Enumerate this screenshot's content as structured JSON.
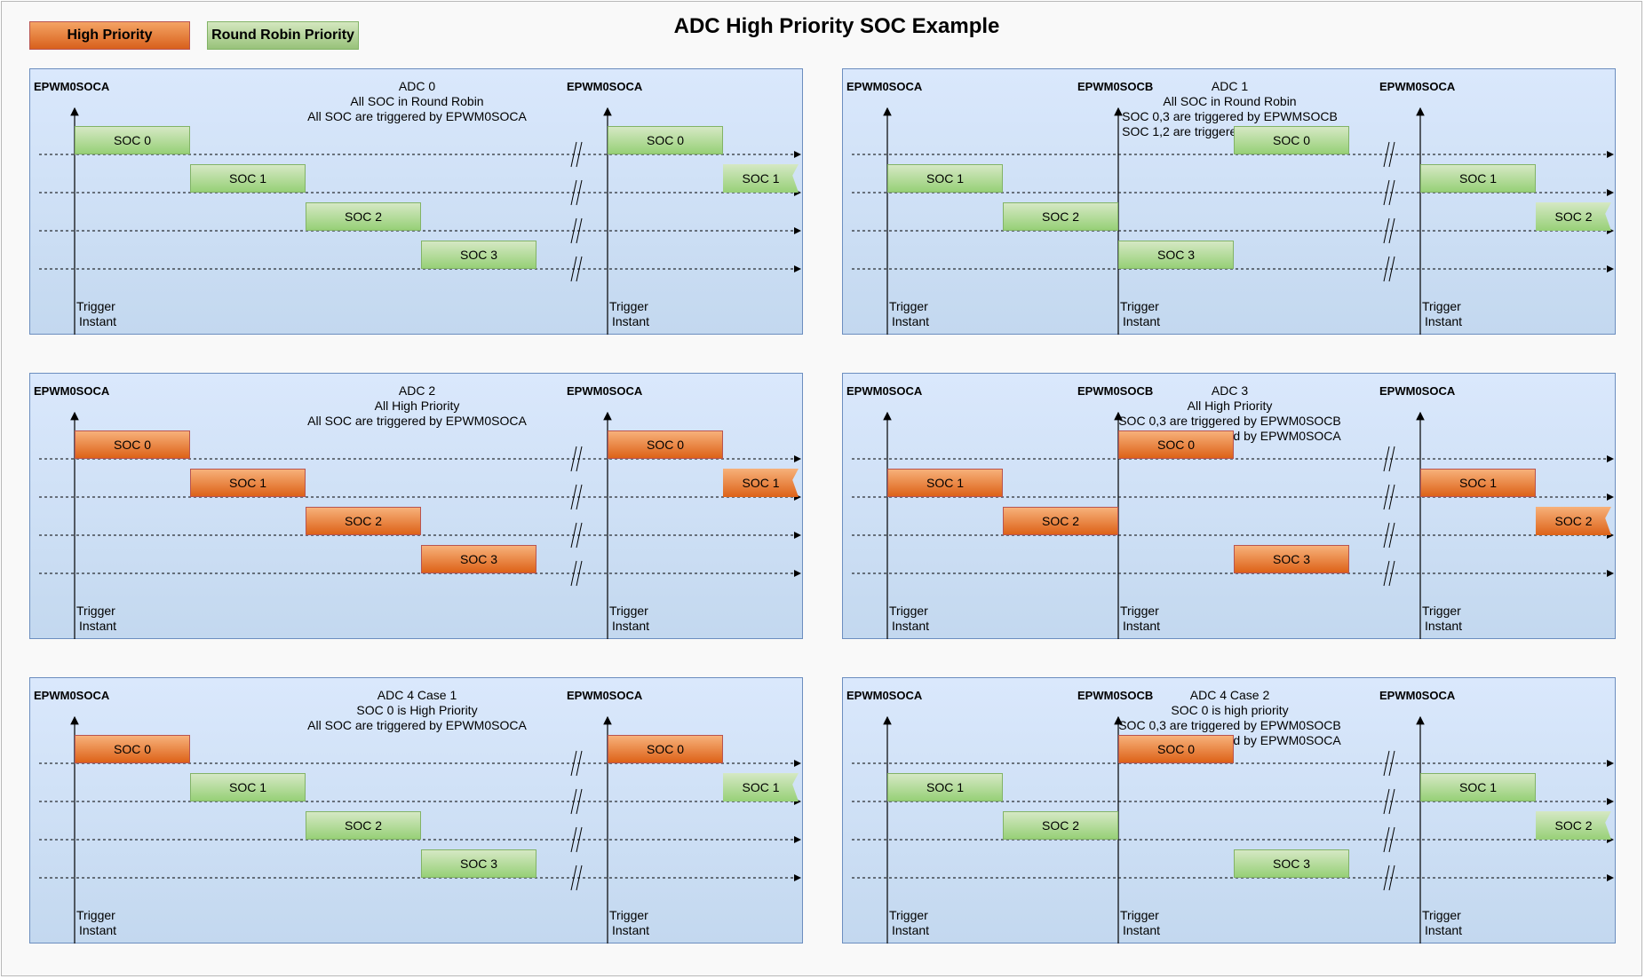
{
  "title": "ADC High Priority SOC Example",
  "legend": {
    "high_label": "High Priority",
    "rr_label": "Round Robin Priority"
  },
  "colors": {
    "high_priority": "#e07020",
    "round_robin": "#97d077",
    "panel_fill": "#dae8fc",
    "panel_border": "#6c8ebf"
  },
  "panels": [
    {
      "title_lines": [
        "ADC 0",
        "All SOC in Round Robin",
        "All SOC are triggered by EPWM0SOCA"
      ],
      "triggers": [
        {
          "label": "EPWM0SOCA",
          "instant": [
            "Trigger",
            "Instant"
          ]
        },
        {
          "label": "EPWM0SOCA",
          "instant": [
            "Trigger",
            "Instant"
          ]
        }
      ],
      "socs": [
        {
          "label": "SOC 0",
          "lane": 0,
          "slot": 0,
          "priority": "round-robin"
        },
        {
          "label": "SOC 1",
          "lane": 1,
          "slot": 1,
          "priority": "round-robin"
        },
        {
          "label": "SOC 2",
          "lane": 2,
          "slot": 2,
          "priority": "round-robin"
        },
        {
          "label": "SOC 3",
          "lane": 3,
          "slot": 3,
          "priority": "round-robin"
        },
        {
          "label": "SOC 0",
          "lane": 0,
          "slot": 4,
          "priority": "round-robin"
        },
        {
          "label": "SOC 1",
          "lane": 1,
          "slot": 5,
          "priority": "round-robin",
          "cut": true
        }
      ]
    },
    {
      "title_lines": [
        "ADC 1",
        "All SOC in Round Robin",
        "SOC 0,3 are triggered by EPWMSOCB",
        "SOC 1,2 are triggered by EPWMSOCA"
      ],
      "triggers": [
        {
          "label": "EPWM0SOCA",
          "instant": [
            "Trigger",
            "Instant"
          ]
        },
        {
          "label": "EPWM0SOCB",
          "instant": [
            "Trigger",
            "Instant"
          ]
        },
        {
          "label": "EPWM0SOCA",
          "instant": [
            "Trigger",
            "Instant"
          ]
        }
      ],
      "socs": [
        {
          "label": "SOC 1",
          "lane": 1,
          "slot": 0,
          "priority": "round-robin"
        },
        {
          "label": "SOC 2",
          "lane": 2,
          "slot": 1,
          "priority": "round-robin"
        },
        {
          "label": "SOC 3",
          "lane": 3,
          "slot": 2,
          "priority": "round-robin"
        },
        {
          "label": "SOC 0",
          "lane": 0,
          "slot": 3,
          "priority": "round-robin"
        },
        {
          "label": "SOC 1",
          "lane": 1,
          "slot": 4,
          "priority": "round-robin"
        },
        {
          "label": "SOC 2",
          "lane": 2,
          "slot": 5,
          "priority": "round-robin",
          "cut": true
        }
      ]
    },
    {
      "title_lines": [
        "ADC 2",
        "All High Priority",
        "All SOC are triggered by EPWM0SOCA"
      ],
      "triggers": [
        {
          "label": "EPWM0SOCA",
          "instant": [
            "Trigger",
            "Instant"
          ]
        },
        {
          "label": "EPWM0SOCA",
          "instant": [
            "Trigger",
            "Instant"
          ]
        }
      ],
      "socs": [
        {
          "label": "SOC 0",
          "lane": 0,
          "slot": 0,
          "priority": "high"
        },
        {
          "label": "SOC 1",
          "lane": 1,
          "slot": 1,
          "priority": "high"
        },
        {
          "label": "SOC 2",
          "lane": 2,
          "slot": 2,
          "priority": "high"
        },
        {
          "label": "SOC 3",
          "lane": 3,
          "slot": 3,
          "priority": "high"
        },
        {
          "label": "SOC 0",
          "lane": 0,
          "slot": 4,
          "priority": "high"
        },
        {
          "label": "SOC 1",
          "lane": 1,
          "slot": 5,
          "priority": "high",
          "cut": true
        }
      ]
    },
    {
      "title_lines": [
        "ADC 3",
        "All High Priority",
        "SOC 0,3 are triggered by EPWM0SOCB",
        "SOC 1,2 are triggered by EPWM0SOCA"
      ],
      "triggers": [
        {
          "label": "EPWM0SOCA",
          "instant": [
            "Trigger",
            "Instant"
          ]
        },
        {
          "label": "EPWM0SOCB",
          "instant": [
            "Trigger",
            "Instant"
          ]
        },
        {
          "label": "EPWM0SOCA",
          "instant": [
            "Trigger",
            "Instant"
          ]
        }
      ],
      "socs": [
        {
          "label": "SOC 1",
          "lane": 1,
          "slot": 0,
          "priority": "high"
        },
        {
          "label": "SOC 2",
          "lane": 2,
          "slot": 1,
          "priority": "high"
        },
        {
          "label": "SOC 0",
          "lane": 0,
          "slot": 2,
          "priority": "high"
        },
        {
          "label": "SOC 3",
          "lane": 3,
          "slot": 3,
          "priority": "high"
        },
        {
          "label": "SOC 1",
          "lane": 1,
          "slot": 4,
          "priority": "high"
        },
        {
          "label": "SOC 2",
          "lane": 2,
          "slot": 5,
          "priority": "high",
          "cut": true
        }
      ]
    },
    {
      "title_lines": [
        "ADC 4 Case 1",
        "SOC 0 is High Priority",
        "All SOC are triggered by EPWM0SOCA"
      ],
      "triggers": [
        {
          "label": "EPWM0SOCA",
          "instant": [
            "Trigger",
            "Instant"
          ]
        },
        {
          "label": "EPWM0SOCA",
          "instant": [
            "Trigger",
            "Instant"
          ]
        }
      ],
      "socs": [
        {
          "label": "SOC 0",
          "lane": 0,
          "slot": 0,
          "priority": "high"
        },
        {
          "label": "SOC 1",
          "lane": 1,
          "slot": 1,
          "priority": "round-robin"
        },
        {
          "label": "SOC 2",
          "lane": 2,
          "slot": 2,
          "priority": "round-robin"
        },
        {
          "label": "SOC 3",
          "lane": 3,
          "slot": 3,
          "priority": "round-robin"
        },
        {
          "label": "SOC 0",
          "lane": 0,
          "slot": 4,
          "priority": "high"
        },
        {
          "label": "SOC 1",
          "lane": 1,
          "slot": 5,
          "priority": "round-robin",
          "cut": true
        }
      ]
    },
    {
      "title_lines": [
        "ADC 4 Case 2",
        "SOC 0 is high priority",
        "SOC 0,3 are triggered by EPWM0SOCB",
        "SOC 1,2 are triggered by EPWM0SOCA"
      ],
      "triggers": [
        {
          "label": "EPWM0SOCA",
          "instant": [
            "Trigger",
            "Instant"
          ]
        },
        {
          "label": "EPWM0SOCB",
          "instant": [
            "Trigger",
            "Instant"
          ]
        },
        {
          "label": "EPWM0SOCA",
          "instant": [
            "Trigger",
            "Instant"
          ]
        }
      ],
      "socs": [
        {
          "label": "SOC 1",
          "lane": 1,
          "slot": 0,
          "priority": "round-robin"
        },
        {
          "label": "SOC 2",
          "lane": 2,
          "slot": 1,
          "priority": "round-robin"
        },
        {
          "label": "SOC 0",
          "lane": 0,
          "slot": 2,
          "priority": "high"
        },
        {
          "label": "SOC 3",
          "lane": 3,
          "slot": 3,
          "priority": "round-robin"
        },
        {
          "label": "SOC 1",
          "lane": 1,
          "slot": 4,
          "priority": "round-robin"
        },
        {
          "label": "SOC 2",
          "lane": 2,
          "slot": 5,
          "priority": "round-robin",
          "cut": true
        }
      ]
    }
  ]
}
